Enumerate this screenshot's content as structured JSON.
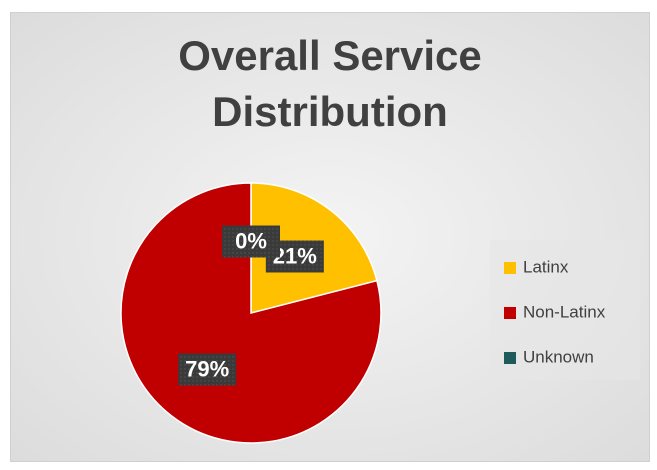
{
  "chart_data": {
    "type": "pie",
    "title": "Overall Service Distribution",
    "categories": [
      "Latinx",
      "Non-Latinx",
      "Unknown"
    ],
    "values": [
      21,
      79,
      0
    ],
    "value_labels": [
      "21%",
      "79%",
      "0%"
    ],
    "colors": [
      "#ffc000",
      "#c00000",
      "#1f5a5a"
    ],
    "legend": "right"
  }
}
